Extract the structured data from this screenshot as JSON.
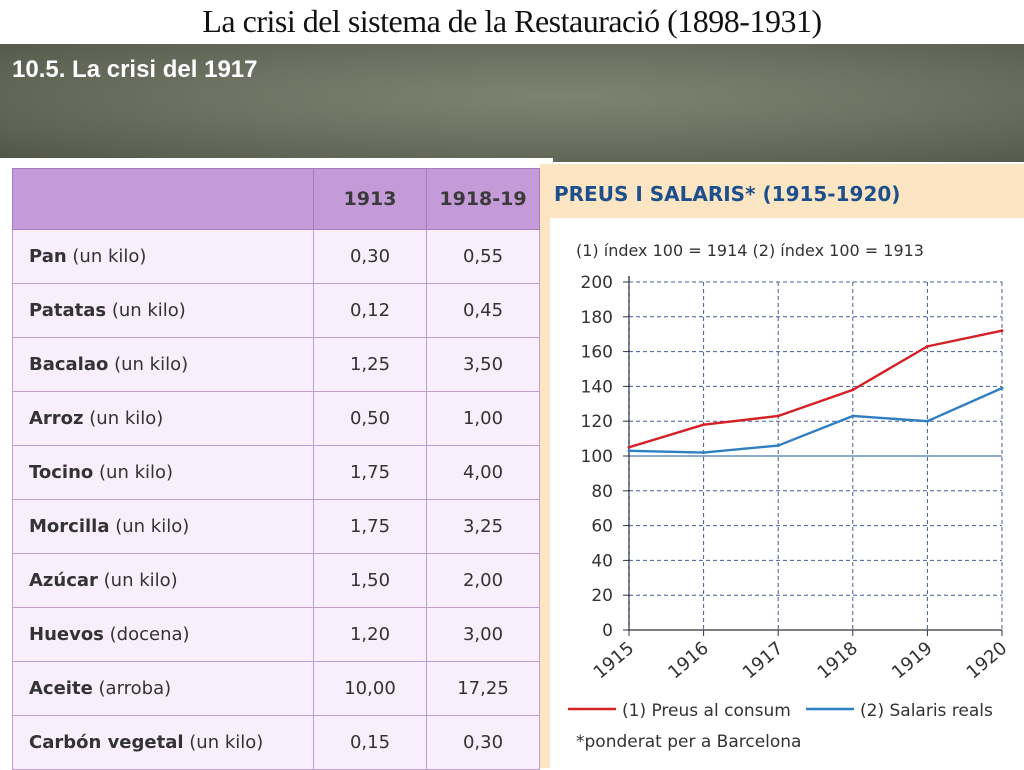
{
  "slide": {
    "title": "La crisi del sistema de la Restauració (1898-1931)",
    "subtitle": "10.5. La crisi del 1917"
  },
  "table": {
    "headers": [
      "",
      "1913",
      "1918-19"
    ],
    "rows": [
      {
        "item": "Pan",
        "unit": "(un kilo)",
        "v1913": "0,30",
        "v1918": "0,55"
      },
      {
        "item": "Patatas",
        "unit": "(un kilo)",
        "v1913": "0,12",
        "v1918": "0,45"
      },
      {
        "item": "Bacalao",
        "unit": "(un kilo)",
        "v1913": "1,25",
        "v1918": "3,50"
      },
      {
        "item": "Arroz",
        "unit": "(un kilo)",
        "v1913": "0,50",
        "v1918": "1,00"
      },
      {
        "item": "Tocino",
        "unit": "(un kilo)",
        "v1913": "1,75",
        "v1918": "4,00"
      },
      {
        "item": "Morcilla",
        "unit": "(un kilo)",
        "v1913": "1,75",
        "v1918": "3,25"
      },
      {
        "item": "Azúcar",
        "unit": "(un kilo)",
        "v1913": "1,50",
        "v1918": "2,00"
      },
      {
        "item": "Huevos",
        "unit": "(docena)",
        "v1913": "1,20",
        "v1918": "3,00"
      },
      {
        "item": "Aceite",
        "unit": "(arroba)",
        "v1913": "10,00",
        "v1918": "17,25"
      },
      {
        "item": "Carbón vegetal",
        "unit": "(un kilo)",
        "v1913": "0,15",
        "v1918": "0,30"
      }
    ]
  },
  "chart_data": {
    "type": "line",
    "title": "PREUS I SALARIS* (1915-1920)",
    "subtitle": "(1) índex 100 = 1914  (2) índex 100 = 1913",
    "footnote": "*ponderat per a Barcelona",
    "x": [
      "1915",
      "1916",
      "1917",
      "1918",
      "1919",
      "1920"
    ],
    "ylim": [
      0,
      200
    ],
    "yticks": [
      0,
      20,
      40,
      60,
      80,
      100,
      120,
      140,
      160,
      180,
      200
    ],
    "grid": true,
    "legend_position": "bottom",
    "series": [
      {
        "name": "(1) Preus al consum",
        "color": "#d42027",
        "values": [
          105,
          118,
          123,
          138,
          163,
          172
        ]
      },
      {
        "name": "(2) Salaris reals",
        "color": "#2f7fc1",
        "values": [
          103,
          102,
          106,
          123,
          120,
          139
        ]
      }
    ]
  }
}
